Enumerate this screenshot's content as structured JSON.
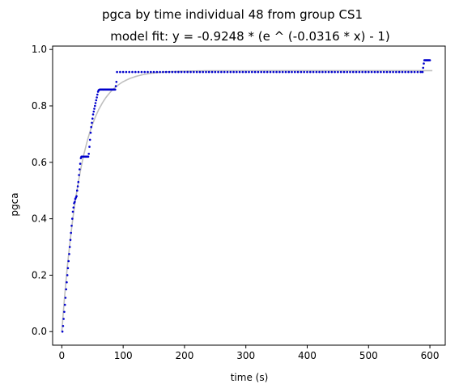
{
  "chart_data": {
    "type": "scatter",
    "title": "pgca by time individual 48 from group CS1",
    "subtitle": "model fit: y = -0.9248 * (e ^ (-0.0316 * x) - 1)",
    "xlabel": "time (s)",
    "ylabel": "pgca",
    "xlim": [
      -15,
      625
    ],
    "ylim": [
      -0.048,
      1.012
    ],
    "xticks": [
      0,
      100,
      200,
      300,
      400,
      500,
      600
    ],
    "xtick_labels": [
      "0",
      "100",
      "200",
      "300",
      "400",
      "500",
      "600"
    ],
    "yticks": [
      0.0,
      0.2,
      0.4,
      0.6,
      0.8,
      1.0
    ],
    "ytick_labels": [
      "0.0",
      "0.2",
      "0.4",
      "0.6",
      "0.8",
      "1.0"
    ],
    "grid": false,
    "legend": "none",
    "series": [
      {
        "kind": "scatter",
        "color": "#0000cc",
        "marker_size": 2,
        "points": [
          [
            1,
            0.0
          ],
          [
            2,
            0.02
          ],
          [
            3,
            0.045
          ],
          [
            4,
            0.07
          ],
          [
            5,
            0.095
          ],
          [
            6,
            0.12
          ],
          [
            7,
            0.15
          ],
          [
            8,
            0.175
          ],
          [
            9,
            0.2
          ],
          [
            10,
            0.225
          ],
          [
            11,
            0.25
          ],
          [
            12,
            0.275
          ],
          [
            13,
            0.3
          ],
          [
            14,
            0.325
          ],
          [
            15,
            0.35
          ],
          [
            16,
            0.375
          ],
          [
            17,
            0.4
          ],
          [
            18,
            0.425
          ],
          [
            19,
            0.44
          ],
          [
            20,
            0.455
          ],
          [
            21,
            0.46
          ],
          [
            22,
            0.47
          ],
          [
            23,
            0.475
          ],
          [
            24,
            0.48
          ],
          [
            25,
            0.5
          ],
          [
            26,
            0.515
          ],
          [
            27,
            0.53
          ],
          [
            28,
            0.555
          ],
          [
            29,
            0.575
          ],
          [
            30,
            0.595
          ],
          [
            31,
            0.615
          ],
          [
            32,
            0.62
          ],
          [
            33,
            0.62
          ],
          [
            34,
            0.62
          ],
          [
            35,
            0.62
          ],
          [
            36,
            0.62
          ],
          [
            37,
            0.62
          ],
          [
            38,
            0.62
          ],
          [
            39,
            0.62
          ],
          [
            40,
            0.62
          ],
          [
            41,
            0.62
          ],
          [
            42,
            0.62
          ],
          [
            43,
            0.62
          ],
          [
            44,
            0.63
          ],
          [
            45,
            0.655
          ],
          [
            46,
            0.68
          ],
          [
            47,
            0.705
          ],
          [
            48,
            0.725
          ],
          [
            49,
            0.74
          ],
          [
            50,
            0.755
          ],
          [
            51,
            0.77
          ],
          [
            52,
            0.78
          ],
          [
            53,
            0.79
          ],
          [
            54,
            0.8
          ],
          [
            55,
            0.81
          ],
          [
            56,
            0.82
          ],
          [
            57,
            0.83
          ],
          [
            58,
            0.84
          ],
          [
            59,
            0.85
          ],
          [
            60,
            0.855
          ],
          [
            61,
            0.857
          ],
          [
            62,
            0.858
          ],
          [
            63,
            0.858
          ],
          [
            64,
            0.858
          ],
          [
            65,
            0.858
          ],
          [
            66,
            0.858
          ],
          [
            67,
            0.858
          ],
          [
            68,
            0.858
          ],
          [
            69,
            0.858
          ],
          [
            70,
            0.858
          ],
          [
            71,
            0.858
          ],
          [
            72,
            0.858
          ],
          [
            73,
            0.858
          ],
          [
            74,
            0.858
          ],
          [
            75,
            0.858
          ],
          [
            76,
            0.858
          ],
          [
            77,
            0.858
          ],
          [
            78,
            0.858
          ],
          [
            79,
            0.858
          ],
          [
            80,
            0.858
          ],
          [
            81,
            0.858
          ],
          [
            82,
            0.858
          ],
          [
            83,
            0.858
          ],
          [
            84,
            0.858
          ],
          [
            85,
            0.858
          ],
          [
            86,
            0.858
          ],
          [
            87,
            0.858
          ],
          [
            88,
            0.87
          ],
          [
            89,
            0.885
          ],
          [
            90,
            0.92
          ],
          [
            95,
            0.92
          ],
          [
            100,
            0.92
          ],
          [
            105,
            0.92
          ],
          [
            110,
            0.92
          ],
          [
            115,
            0.92
          ],
          [
            120,
            0.92
          ],
          [
            125,
            0.92
          ],
          [
            130,
            0.92
          ],
          [
            135,
            0.92
          ],
          [
            140,
            0.92
          ],
          [
            145,
            0.92
          ],
          [
            150,
            0.92
          ],
          [
            155,
            0.92
          ],
          [
            160,
            0.92
          ],
          [
            165,
            0.92
          ],
          [
            170,
            0.92
          ],
          [
            175,
            0.92
          ],
          [
            180,
            0.92
          ],
          [
            185,
            0.92
          ],
          [
            190,
            0.92
          ],
          [
            195,
            0.92
          ],
          [
            200,
            0.92
          ],
          [
            205,
            0.92
          ],
          [
            210,
            0.92
          ],
          [
            215,
            0.92
          ],
          [
            220,
            0.92
          ],
          [
            225,
            0.92
          ],
          [
            230,
            0.92
          ],
          [
            235,
            0.92
          ],
          [
            240,
            0.92
          ],
          [
            245,
            0.92
          ],
          [
            250,
            0.92
          ],
          [
            255,
            0.92
          ],
          [
            260,
            0.92
          ],
          [
            265,
            0.92
          ],
          [
            270,
            0.92
          ],
          [
            275,
            0.92
          ],
          [
            280,
            0.92
          ],
          [
            285,
            0.92
          ],
          [
            290,
            0.92
          ],
          [
            295,
            0.92
          ],
          [
            300,
            0.92
          ],
          [
            305,
            0.92
          ],
          [
            310,
            0.92
          ],
          [
            315,
            0.92
          ],
          [
            320,
            0.92
          ],
          [
            325,
            0.92
          ],
          [
            330,
            0.92
          ],
          [
            335,
            0.92
          ],
          [
            340,
            0.92
          ],
          [
            345,
            0.92
          ],
          [
            350,
            0.92
          ],
          [
            355,
            0.92
          ],
          [
            360,
            0.92
          ],
          [
            365,
            0.92
          ],
          [
            370,
            0.92
          ],
          [
            375,
            0.92
          ],
          [
            380,
            0.92
          ],
          [
            385,
            0.92
          ],
          [
            390,
            0.92
          ],
          [
            395,
            0.92
          ],
          [
            400,
            0.92
          ],
          [
            405,
            0.92
          ],
          [
            410,
            0.92
          ],
          [
            415,
            0.92
          ],
          [
            420,
            0.92
          ],
          [
            425,
            0.92
          ],
          [
            430,
            0.92
          ],
          [
            435,
            0.92
          ],
          [
            440,
            0.92
          ],
          [
            445,
            0.92
          ],
          [
            450,
            0.92
          ],
          [
            455,
            0.92
          ],
          [
            460,
            0.92
          ],
          [
            465,
            0.92
          ],
          [
            470,
            0.92
          ],
          [
            475,
            0.92
          ],
          [
            480,
            0.92
          ],
          [
            485,
            0.92
          ],
          [
            490,
            0.92
          ],
          [
            495,
            0.92
          ],
          [
            500,
            0.92
          ],
          [
            505,
            0.92
          ],
          [
            510,
            0.92
          ],
          [
            515,
            0.92
          ],
          [
            520,
            0.92
          ],
          [
            525,
            0.92
          ],
          [
            530,
            0.92
          ],
          [
            535,
            0.92
          ],
          [
            540,
            0.92
          ],
          [
            545,
            0.92
          ],
          [
            550,
            0.92
          ],
          [
            555,
            0.92
          ],
          [
            560,
            0.92
          ],
          [
            565,
            0.92
          ],
          [
            570,
            0.92
          ],
          [
            575,
            0.92
          ],
          [
            580,
            0.92
          ],
          [
            585,
            0.92
          ],
          [
            588,
            0.92
          ],
          [
            589,
            0.935
          ],
          [
            590,
            0.95
          ],
          [
            591,
            0.962
          ],
          [
            592,
            0.962
          ],
          [
            593,
            0.962
          ],
          [
            594,
            0.962
          ],
          [
            595,
            0.962
          ],
          [
            596,
            0.962
          ],
          [
            597,
            0.962
          ],
          [
            598,
            0.962
          ],
          [
            599,
            0.962
          ],
          [
            600,
            0.962
          ]
        ]
      },
      {
        "kind": "fit-line",
        "color": "#bfbfbf",
        "x_range": [
          0,
          605
        ],
        "a": -0.9248,
        "b": -0.0316
      }
    ]
  }
}
